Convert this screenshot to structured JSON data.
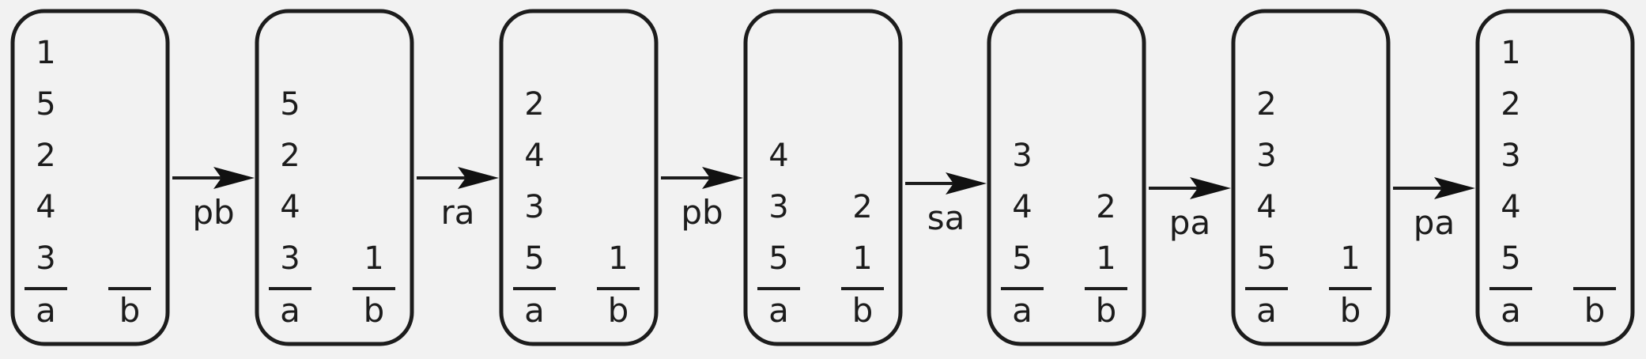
{
  "stack_labels": {
    "a": "a",
    "b": "b"
  },
  "states": [
    {
      "a": [
        "1",
        "5",
        "2",
        "4",
        "3"
      ],
      "b": []
    },
    {
      "a": [
        "5",
        "2",
        "4",
        "3"
      ],
      "b": [
        "1"
      ]
    },
    {
      "a": [
        "2",
        "4",
        "3",
        "5"
      ],
      "b": [
        "1"
      ]
    },
    {
      "a": [
        "4",
        "3",
        "5"
      ],
      "b": [
        "2",
        "1"
      ]
    },
    {
      "a": [
        "3",
        "4",
        "5"
      ],
      "b": [
        "2",
        "1"
      ]
    },
    {
      "a": [
        "2",
        "3",
        "4",
        "5"
      ],
      "b": [
        "1"
      ]
    },
    {
      "a": [
        "1",
        "2",
        "3",
        "4",
        "5"
      ],
      "b": []
    }
  ],
  "operations": [
    "pb",
    "ra",
    "pb",
    "sa",
    "pa",
    "pa"
  ],
  "colors": {
    "stroke": "#1c1c1c",
    "background": "#f2f2f2"
  }
}
